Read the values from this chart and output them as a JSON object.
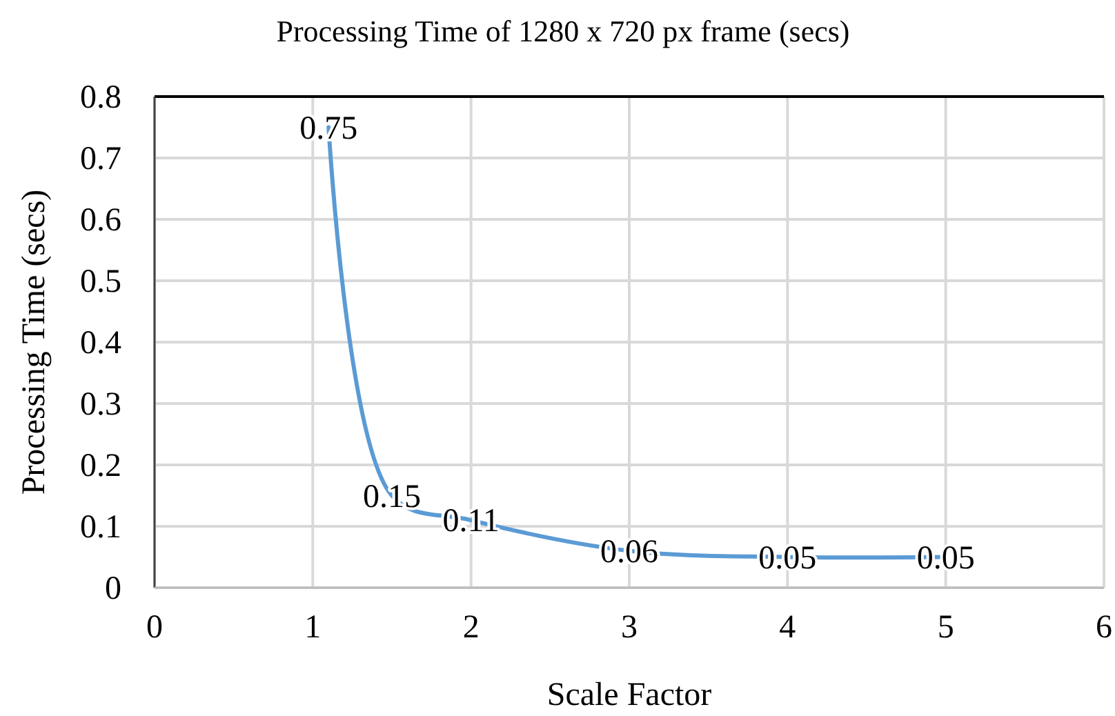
{
  "chart_data": {
    "type": "line",
    "title": "Processing Time of 1280 x 720 px frame (secs)",
    "xlabel": "Scale Factor",
    "ylabel": "Processing Time (secs)",
    "x": [
      1.1,
      1.5,
      2,
      3,
      4,
      5
    ],
    "series": [
      {
        "color": "#5b9bd5",
        "values": [
          0.75,
          0.15,
          0.11,
          0.06,
          0.05,
          0.05
        ]
      }
    ],
    "xlim": [
      0,
      6
    ],
    "xticks": [
      0,
      1,
      2,
      3,
      4,
      5,
      6
    ],
    "ylim": [
      0,
      0.8
    ],
    "yticks": [
      0,
      0.1,
      0.2,
      0.3,
      0.4,
      0.5,
      0.6,
      0.7,
      0.8
    ],
    "grid": true,
    "data_labels": true,
    "marker": "none",
    "line_style": "solid"
  }
}
